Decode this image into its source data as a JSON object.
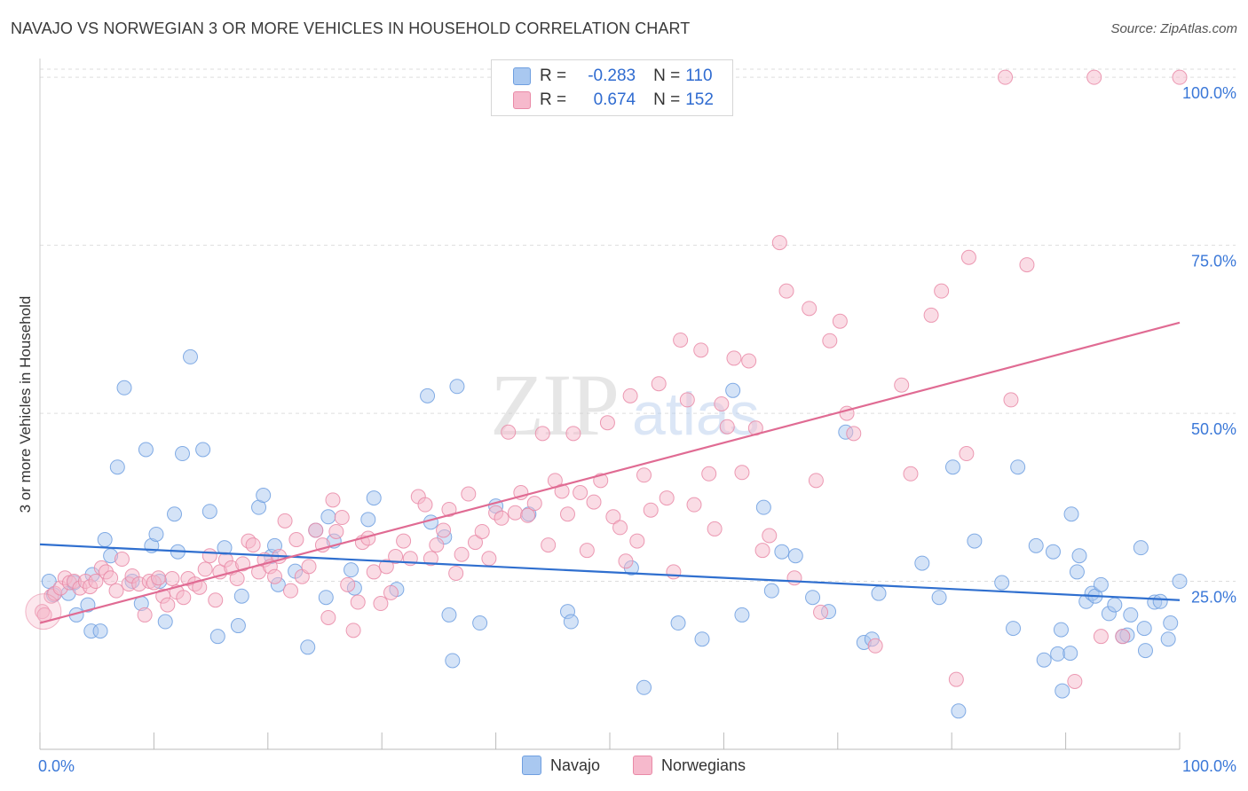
{
  "title": "NAVAJO VS NORWEGIAN 3 OR MORE VEHICLES IN HOUSEHOLD CORRELATION CHART",
  "source": "Source: ZipAtlas.com",
  "watermark": {
    "zip": "ZIP",
    "atlas": "atlas"
  },
  "stats": [
    {
      "r_label": "R =",
      "r_value": "-0.283",
      "n_label": "N =",
      "n_value": "110"
    },
    {
      "r_label": "R =",
      "r_value": "0.674",
      "n_label": "N =",
      "n_value": "152"
    }
  ],
  "legend": {
    "navajo": "Navajo",
    "norwegians": "Norwegians"
  },
  "colors": {
    "navajo_fill": "#a9c8f0",
    "navajo_stroke": "#6f9fe0",
    "navajo_line": "#2f6fcf",
    "norw_fill": "#f6b9cc",
    "norw_stroke": "#e98aa7",
    "norw_line": "#e06b93",
    "tick": "#3b78d8",
    "grid": "#dddddd"
  },
  "chart_data": {
    "type": "scatter",
    "title": "NAVAJO VS NORWEGIAN 3 OR MORE VEHICLES IN HOUSEHOLD CORRELATION CHART",
    "xlabel": "",
    "ylabel": "3 or more Vehicles in Household",
    "xlim": [
      0,
      100
    ],
    "ylim": [
      0,
      102
    ],
    "x_tick_labels": [
      "0.0%",
      "100.0%"
    ],
    "y_ticks": [
      25,
      50,
      75,
      100
    ],
    "y_tick_labels": [
      "25.0%",
      "50.0%",
      "75.0%",
      "100.0%"
    ],
    "grid": true,
    "legend_position": "bottom-center",
    "series": [
      {
        "name": "Navajo",
        "r": -0.283,
        "n": 110,
        "trend": {
          "x": [
            0,
            100
          ],
          "y": [
            30.5,
            22.2
          ]
        },
        "points": [
          [
            0.8,
            25
          ],
          [
            1.2,
            23
          ],
          [
            2.5,
            23.2
          ],
          [
            3,
            24.8
          ],
          [
            3.2,
            20
          ],
          [
            4.2,
            21.5
          ],
          [
            4.5,
            17.6
          ],
          [
            4.6,
            26
          ],
          [
            5.3,
            17.6
          ],
          [
            5.7,
            31.2
          ],
          [
            6.2,
            28.8
          ],
          [
            6.8,
            42
          ],
          [
            7.4,
            53.8
          ],
          [
            8.1,
            25
          ],
          [
            8.9,
            21.7
          ],
          [
            9.3,
            44.6
          ],
          [
            9.8,
            30.3
          ],
          [
            10.2,
            32
          ],
          [
            10.5,
            25
          ],
          [
            11,
            19
          ],
          [
            11.8,
            35
          ],
          [
            12.1,
            29.4
          ],
          [
            12.5,
            44
          ],
          [
            13.2,
            58.4
          ],
          [
            14.3,
            44.6
          ],
          [
            14.9,
            35.4
          ],
          [
            15.6,
            16.8
          ],
          [
            16.2,
            30
          ],
          [
            17.4,
            18.4
          ],
          [
            17.7,
            22.8
          ],
          [
            19.2,
            36
          ],
          [
            19.6,
            37.8
          ],
          [
            20.3,
            28.7
          ],
          [
            20.6,
            30.3
          ],
          [
            20.9,
            24.5
          ],
          [
            22.4,
            26.5
          ],
          [
            23.5,
            15.2
          ],
          [
            24.2,
            32.6
          ],
          [
            25.1,
            22.6
          ],
          [
            25.3,
            34.6
          ],
          [
            25.8,
            31
          ],
          [
            27.3,
            26.7
          ],
          [
            27.6,
            24
          ],
          [
            28.8,
            34.2
          ],
          [
            29.3,
            37.4
          ],
          [
            31.3,
            23.8
          ],
          [
            34,
            52.6
          ],
          [
            34.3,
            33.8
          ],
          [
            35.5,
            31.6
          ],
          [
            35.9,
            20
          ],
          [
            36.2,
            13.2
          ],
          [
            36.6,
            54
          ],
          [
            38.6,
            18.8
          ],
          [
            40,
            36.2
          ],
          [
            42.9,
            35
          ],
          [
            46.3,
            20.5
          ],
          [
            46.6,
            19
          ],
          [
            51.9,
            27
          ],
          [
            53,
            9.2
          ],
          [
            56,
            18.8
          ],
          [
            58.1,
            16.4
          ],
          [
            60.8,
            53.4
          ],
          [
            61.6,
            20
          ],
          [
            63.5,
            36
          ],
          [
            64.2,
            23.6
          ],
          [
            65.1,
            29.4
          ],
          [
            66.3,
            28.8
          ],
          [
            67.8,
            22.6
          ],
          [
            69.2,
            20.5
          ],
          [
            70.7,
            47.2
          ],
          [
            72.3,
            15.9
          ],
          [
            73,
            16.4
          ],
          [
            73.6,
            23.2
          ],
          [
            77.4,
            27.7
          ],
          [
            78.9,
            22.6
          ],
          [
            80.1,
            42
          ],
          [
            80.6,
            5.7
          ],
          [
            82,
            31
          ],
          [
            84.4,
            24.8
          ],
          [
            85.4,
            18
          ],
          [
            85.8,
            42
          ],
          [
            87.4,
            30.3
          ],
          [
            88.1,
            13.3
          ],
          [
            88.9,
            29.4
          ],
          [
            89.3,
            14.2
          ],
          [
            89.6,
            17.8
          ],
          [
            89.7,
            8.7
          ],
          [
            90.4,
            14.3
          ],
          [
            90.5,
            35
          ],
          [
            91,
            26.4
          ],
          [
            91.2,
            28.8
          ],
          [
            91.8,
            22
          ],
          [
            92.3,
            23.2
          ],
          [
            92.6,
            22.8
          ],
          [
            93.1,
            24.5
          ],
          [
            93.8,
            20.2
          ],
          [
            94.3,
            21.5
          ],
          [
            95,
            16.8
          ],
          [
            95.7,
            20
          ],
          [
            95.4,
            17
          ],
          [
            96.6,
            30
          ],
          [
            96.9,
            18
          ],
          [
            97,
            14.7
          ],
          [
            97.8,
            21.9
          ],
          [
            98.3,
            22
          ],
          [
            99,
            16.4
          ],
          [
            99.2,
            18.8
          ],
          [
            100,
            25
          ]
        ]
      },
      {
        "name": "Norwegians",
        "r": 0.674,
        "n": 152,
        "trend": {
          "x": [
            0,
            100
          ],
          "y": [
            18.8,
            63.5
          ]
        },
        "points": [
          [
            0.2,
            20.5
          ],
          [
            0.4,
            20
          ],
          [
            1,
            22.8
          ],
          [
            1.3,
            23.2
          ],
          [
            1.8,
            24
          ],
          [
            2.2,
            25.5
          ],
          [
            2.6,
            24.8
          ],
          [
            3,
            25
          ],
          [
            3.5,
            24
          ],
          [
            4,
            25
          ],
          [
            4.4,
            24.2
          ],
          [
            4.9,
            25
          ],
          [
            5.4,
            27
          ],
          [
            5.8,
            26.4
          ],
          [
            6.2,
            25.5
          ],
          [
            6.7,
            23.6
          ],
          [
            7.2,
            28.3
          ],
          [
            7.8,
            24.6
          ],
          [
            8.1,
            25.8
          ],
          [
            8.7,
            24.6
          ],
          [
            9.2,
            20
          ],
          [
            9.6,
            25
          ],
          [
            10,
            24.8
          ],
          [
            10.4,
            25.5
          ],
          [
            10.8,
            22.8
          ],
          [
            11.2,
            21.5
          ],
          [
            11.6,
            25.4
          ],
          [
            12,
            23.4
          ],
          [
            12.6,
            22.6
          ],
          [
            13,
            25.4
          ],
          [
            13.6,
            24.6
          ],
          [
            14,
            24.1
          ],
          [
            14.5,
            26.8
          ],
          [
            14.9,
            28.8
          ],
          [
            15.4,
            22.2
          ],
          [
            15.8,
            26.4
          ],
          [
            16.3,
            28.2
          ],
          [
            16.8,
            27
          ],
          [
            17.3,
            25.4
          ],
          [
            17.8,
            27.6
          ],
          [
            18.3,
            31
          ],
          [
            18.7,
            30.4
          ],
          [
            19.2,
            26.4
          ],
          [
            19.7,
            28.2
          ],
          [
            20.2,
            27.2
          ],
          [
            20.6,
            25.7
          ],
          [
            21,
            28.7
          ],
          [
            21.5,
            34
          ],
          [
            22,
            23.6
          ],
          [
            22.5,
            31.2
          ],
          [
            23,
            25.7
          ],
          [
            23.6,
            27.2
          ],
          [
            24.2,
            32.6
          ],
          [
            24.8,
            30.4
          ],
          [
            25.3,
            19.6
          ],
          [
            25.7,
            37.1
          ],
          [
            26,
            32.4
          ],
          [
            26.5,
            34.5
          ],
          [
            27,
            24.5
          ],
          [
            27.5,
            17.7
          ],
          [
            27.9,
            21.9
          ],
          [
            28.3,
            30.8
          ],
          [
            28.8,
            31.4
          ],
          [
            29.3,
            26.4
          ],
          [
            29.9,
            21.7
          ],
          [
            30.4,
            27.2
          ],
          [
            30.8,
            23.3
          ],
          [
            31.2,
            28.7
          ],
          [
            31.9,
            31
          ],
          [
            32.5,
            28.4
          ],
          [
            33.2,
            37.6
          ],
          [
            33.8,
            36.4
          ],
          [
            34.3,
            28.4
          ],
          [
            34.8,
            30.4
          ],
          [
            35.4,
            32.6
          ],
          [
            35.9,
            35.7
          ],
          [
            36.5,
            26.2
          ],
          [
            37,
            29
          ],
          [
            37.6,
            38
          ],
          [
            38.2,
            30.8
          ],
          [
            38.8,
            32.4
          ],
          [
            39.4,
            28.4
          ],
          [
            40,
            35.2
          ],
          [
            40.5,
            34.4
          ],
          [
            41.1,
            47.2
          ],
          [
            41.7,
            35.2
          ],
          [
            42.2,
            38.2
          ],
          [
            42.8,
            34.8
          ],
          [
            43.4,
            36.6
          ],
          [
            44.1,
            47
          ],
          [
            44.6,
            30.4
          ],
          [
            45.2,
            40
          ],
          [
            45.8,
            38.4
          ],
          [
            46.3,
            35
          ],
          [
            46.8,
            47
          ],
          [
            47.4,
            38.2
          ],
          [
            48,
            29.6
          ],
          [
            48.6,
            36.8
          ],
          [
            49.2,
            40
          ],
          [
            49.8,
            48.6
          ],
          [
            50.3,
            34.6
          ],
          [
            50.9,
            33
          ],
          [
            51.4,
            28
          ],
          [
            51.8,
            52.6
          ],
          [
            52.4,
            31
          ],
          [
            53,
            40.8
          ],
          [
            53.6,
            35.6
          ],
          [
            54.3,
            54.4
          ],
          [
            55,
            37.4
          ],
          [
            55.6,
            26.4
          ],
          [
            56.2,
            60.9
          ],
          [
            56.8,
            52
          ],
          [
            57.4,
            36.4
          ],
          [
            58,
            59.4
          ],
          [
            58.7,
            41
          ],
          [
            59.2,
            32.8
          ],
          [
            59.8,
            51.4
          ],
          [
            60.3,
            48
          ],
          [
            60.9,
            58.2
          ],
          [
            61.6,
            41.2
          ],
          [
            62.2,
            57.8
          ],
          [
            62.8,
            47.8
          ],
          [
            63.4,
            29.6
          ],
          [
            64,
            31.8
          ],
          [
            64.9,
            75.4
          ],
          [
            65.5,
            68.2
          ],
          [
            66.2,
            25.5
          ],
          [
            67.5,
            65.6
          ],
          [
            68.1,
            40
          ],
          [
            68.5,
            20.4
          ],
          [
            69.3,
            60.8
          ],
          [
            70.2,
            63.7
          ],
          [
            70.8,
            50
          ],
          [
            71.4,
            47
          ],
          [
            73.3,
            15.4
          ],
          [
            75.6,
            54.2
          ],
          [
            76.4,
            41
          ],
          [
            78.2,
            64.6
          ],
          [
            79.1,
            68.2
          ],
          [
            80.4,
            10.4
          ],
          [
            81.3,
            44
          ],
          [
            81.5,
            73.2
          ],
          [
            85.2,
            52
          ],
          [
            86.6,
            72.1
          ],
          [
            90.8,
            10.1
          ],
          [
            92.5,
            100
          ],
          [
            93.1,
            16.8
          ],
          [
            95,
            16.8
          ],
          [
            100,
            100
          ],
          [
            84.7,
            100
          ]
        ]
      }
    ]
  }
}
